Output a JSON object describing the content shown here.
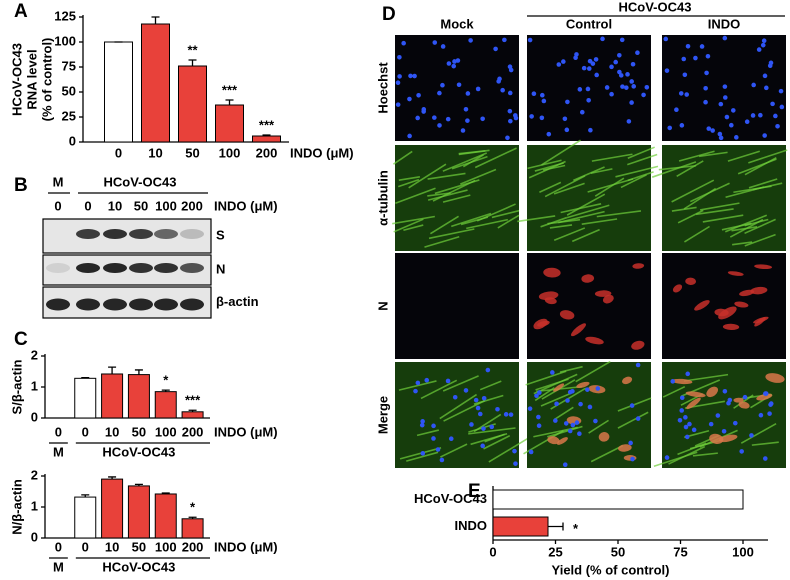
{
  "chart_data": [
    {
      "type": "bar",
      "ylabel": [
        "HCoV-OC43",
        "RNA level",
        "(% of control)"
      ],
      "xlabel": "INDO (μM)",
      "categories": [
        "0",
        "10",
        "50",
        "100",
        "200"
      ],
      "values": [
        100,
        118,
        76,
        37,
        6
      ],
      "errors": [
        0,
        7,
        6,
        5,
        1
      ],
      "annotations": [
        null,
        null,
        "**",
        "***",
        "***"
      ],
      "colors": [
        "#ffffff",
        "#e8413a",
        "#e8413a",
        "#e8413a",
        "#e8413a"
      ],
      "ylim": [
        0,
        125
      ],
      "yticks": [
        0,
        25,
        50,
        75,
        100,
        125
      ]
    },
    {
      "type": "bar",
      "ylabel": "S/β-actin",
      "xlabel": "INDO (μM)",
      "group_labels": [
        "M",
        "HCoV-OC43"
      ],
      "categories": [
        "0",
        "0",
        "10",
        "50",
        "100",
        "200"
      ],
      "values": [
        null,
        1.28,
        1.42,
        1.4,
        0.85,
        0.2
      ],
      "errors": [
        null,
        0.02,
        0.22,
        0.15,
        0.05,
        0.05
      ],
      "annotations": [
        null,
        null,
        null,
        null,
        "*",
        "***"
      ],
      "colors": [
        "#ffffff",
        "#ffffff",
        "#e8413a",
        "#e8413a",
        "#e8413a",
        "#e8413a"
      ],
      "ylim": [
        0,
        2
      ],
      "yticks": [
        0,
        1,
        2
      ]
    },
    {
      "type": "bar",
      "ylabel": "N/β-actin",
      "xlabel": "INDO (μM)",
      "group_labels": [
        "M",
        "HCoV-OC43"
      ],
      "categories": [
        "0",
        "0",
        "10",
        "50",
        "100",
        "200"
      ],
      "values": [
        null,
        1.32,
        1.9,
        1.68,
        1.42,
        0.62
      ],
      "errors": [
        null,
        0.07,
        0.07,
        0.05,
        0.03,
        0.05
      ],
      "annotations": [
        null,
        null,
        null,
        null,
        null,
        "*"
      ],
      "colors": [
        "#ffffff",
        "#ffffff",
        "#e8413a",
        "#e8413a",
        "#e8413a",
        "#e8413a"
      ],
      "ylim": [
        0,
        2
      ],
      "yticks": [
        0,
        1,
        2
      ]
    },
    {
      "type": "bar",
      "orientation": "horizontal",
      "xlabel": "Yield  (% of control)",
      "categories": [
        "HCoV-OC43",
        "INDO"
      ],
      "values": [
        100,
        22
      ],
      "errors": [
        0,
        6
      ],
      "annotations": [
        null,
        "*"
      ],
      "colors": [
        "#ffffff",
        "#e8413a"
      ],
      "xlim": [
        0,
        110
      ],
      "xticks": [
        0,
        25,
        50,
        75,
        100
      ]
    }
  ],
  "panel_letters": [
    "A",
    "B",
    "C",
    "D",
    "E"
  ],
  "blot": {
    "group_labels": [
      "M",
      "HCoV-OC43"
    ],
    "lanes": [
      "0",
      "0",
      "10",
      "50",
      "100",
      "200"
    ],
    "xlabel": "INDO (μM)",
    "rows": [
      "S",
      "N",
      "β-actin"
    ]
  },
  "micrograph": {
    "group_label": "HCoV-OC43",
    "columns": [
      "Mock",
      "Control",
      "INDO"
    ],
    "rows": [
      "Hoechst",
      "α-tubulin",
      "N",
      "Merge"
    ],
    "row_colors": [
      "#3d8fe0",
      "#4fa82a",
      "#e0402a",
      "#000000"
    ]
  }
}
